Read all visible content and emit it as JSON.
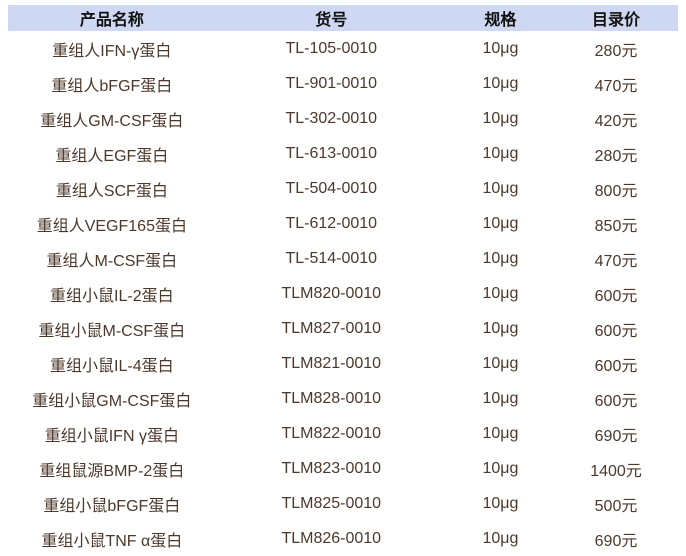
{
  "table": {
    "columns": [
      {
        "key": "name",
        "label": "产品名称"
      },
      {
        "key": "sku",
        "label": "货号"
      },
      {
        "key": "spec",
        "label": "规格"
      },
      {
        "key": "price",
        "label": "目录价"
      }
    ],
    "rows": [
      {
        "name": "重组人IFN-γ蛋白",
        "sku": "TL-105-0010",
        "spec": "10μg",
        "price": "280元"
      },
      {
        "name": "重组人bFGF蛋白",
        "sku": "TL-901-0010",
        "spec": "10μg",
        "price": "470元"
      },
      {
        "name": "重组人GM-CSF蛋白",
        "sku": "TL-302-0010",
        "spec": "10μg",
        "price": "420元"
      },
      {
        "name": "重组人EGF蛋白",
        "sku": "TL-613-0010",
        "spec": "10μg",
        "price": "280元"
      },
      {
        "name": "重组人SCF蛋白",
        "sku": "TL-504-0010",
        "spec": "10μg",
        "price": "800元"
      },
      {
        "name": "重组人VEGF165蛋白",
        "sku": "TL-612-0010",
        "spec": "10μg",
        "price": "850元"
      },
      {
        "name": "重组人M-CSF蛋白",
        "sku": "TL-514-0010",
        "spec": "10μg",
        "price": "470元"
      },
      {
        "name": "重组小鼠IL-2蛋白",
        "sku": "TLM820-0010",
        "spec": "10μg",
        "price": "600元"
      },
      {
        "name": "重组小鼠M-CSF蛋白",
        "sku": "TLM827-0010",
        "spec": "10μg",
        "price": "600元"
      },
      {
        "name": "重组小鼠IL-4蛋白",
        "sku": "TLM821-0010",
        "spec": "10μg",
        "price": "600元"
      },
      {
        "name": "重组小鼠GM-CSF蛋白",
        "sku": "TLM828-0010",
        "spec": "10μg",
        "price": "600元"
      },
      {
        "name": "重组小鼠IFN γ蛋白",
        "sku": "TLM822-0010",
        "spec": "10μg",
        "price": "690元"
      },
      {
        "name": "重组鼠源BMP-2蛋白",
        "sku": "TLM823-0010",
        "spec": "10μg",
        "price": "1400元"
      },
      {
        "name": "重组小鼠bFGF蛋白",
        "sku": "TLM825-0010",
        "spec": "10μg",
        "price": "500元"
      },
      {
        "name": "重组小鼠TNF α蛋白",
        "sku": "TLM826-0010",
        "spec": "10μg",
        "price": "690元"
      }
    ]
  },
  "colors": {
    "header_bg": "#cfd8f3",
    "header_text": "#111111",
    "body_text": "#4c382b",
    "page_bg": "#ffffff"
  }
}
